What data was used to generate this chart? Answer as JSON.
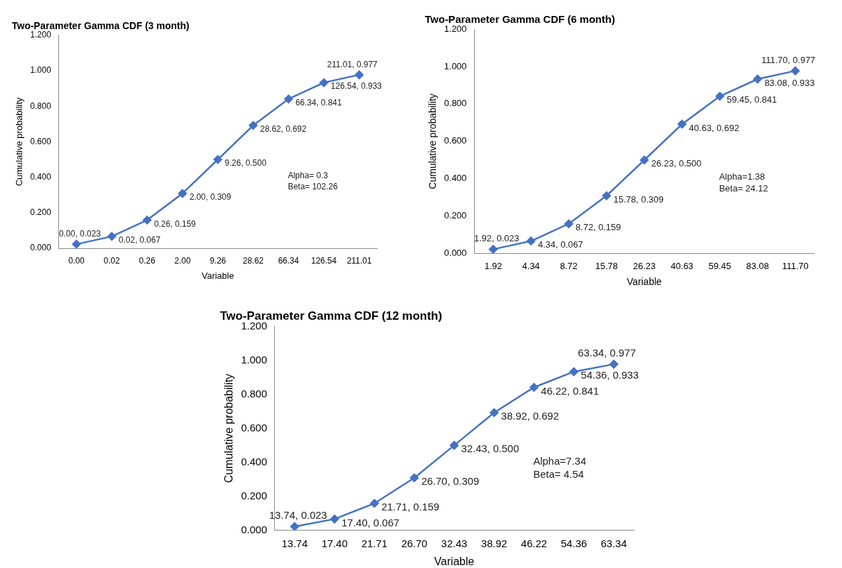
{
  "chart_data": [
    {
      "type": "line",
      "title": "Two-Parameter Gamma CDF (3 month)",
      "xlabel": "Variable",
      "ylabel": "Cumulative probability",
      "categories": [
        "0.00",
        "0.02",
        "0.26",
        "2.00",
        "9.26",
        "28.62",
        "66.34",
        "126.54",
        "211.01"
      ],
      "series": [
        {
          "color": "#4472c4",
          "values": [
            0.023,
            0.067,
            0.159,
            0.309,
            0.5,
            0.692,
            0.841,
            0.933,
            0.977
          ],
          "value_labels": [
            "0.00, 0.023",
            "0.02, 0.067",
            "0.26, 0.159",
            "2.00, 0.309",
            "9.26, 0.500",
            "28.62, 0.692",
            "66.34, 0.841",
            "126.54, 0.933",
            "211.01, 0.977"
          ]
        }
      ],
      "ylim": [
        0,
        1.2
      ],
      "yticks": [
        {
          "value": 0,
          "label": "0.000"
        },
        {
          "value": 0.2,
          "label": "0.200"
        },
        {
          "value": 0.4,
          "label": "0.400"
        },
        {
          "value": 0.6,
          "label": "0.600"
        },
        {
          "value": 0.8,
          "label": "0.800"
        },
        {
          "value": 1,
          "label": "1.000"
        },
        {
          "value": 1.2,
          "label": "1.200"
        }
      ],
      "grid": false,
      "legend": false,
      "marker": "diamond",
      "line_style": "solid",
      "annotations": [
        "Alpha= 0.3",
        "Beta= 102.26"
      ]
    },
    {
      "type": "line",
      "title": "Two-Parameter Gamma CDF (6 month)",
      "xlabel": "Variable",
      "ylabel": "Cumulative probability",
      "categories": [
        "1.92",
        "4.34",
        "8.72",
        "15.78",
        "26.23",
        "40.63",
        "59.45",
        "83.08",
        "111.70"
      ],
      "series": [
        {
          "color": "#4472c4",
          "values": [
            0.023,
            0.067,
            0.159,
            0.309,
            0.5,
            0.692,
            0.841,
            0.933,
            0.977
          ],
          "value_labels": [
            "1.92, 0.023",
            "4.34, 0.067",
            "8.72, 0.159",
            "15.78, 0.309",
            "26.23, 0.500",
            "40.63, 0.692",
            "59.45, 0.841",
            "83.08, 0.933",
            "111.70, 0.977"
          ]
        }
      ],
      "ylim": [
        0,
        1.2
      ],
      "yticks": [
        {
          "value": 0,
          "label": "0.000"
        },
        {
          "value": 0.2,
          "label": "0.200"
        },
        {
          "value": 0.4,
          "label": "0.400"
        },
        {
          "value": 0.6,
          "label": "0.600"
        },
        {
          "value": 0.8,
          "label": "0.800"
        },
        {
          "value": 1,
          "label": "1.000"
        },
        {
          "value": 1.2,
          "label": "1.200"
        }
      ],
      "grid": false,
      "legend": false,
      "marker": "diamond",
      "line_style": "solid",
      "annotations": [
        "Alpha=1.38",
        "Beta= 24.12"
      ]
    },
    {
      "type": "line",
      "title": "Two-Parameter Gamma CDF (12 month)",
      "xlabel": "Variable",
      "ylabel": "Cumulative probability",
      "categories": [
        "13.74",
        "17.40",
        "21.71",
        "26.70",
        "32.43",
        "38.92",
        "46.22",
        "54.36",
        "63.34"
      ],
      "series": [
        {
          "color": "#4472c4",
          "values": [
            0.023,
            0.067,
            0.159,
            0.309,
            0.5,
            0.692,
            0.841,
            0.933,
            0.977
          ],
          "value_labels": [
            "13.74, 0.023",
            "17.40, 0.067",
            "21.71, 0.159",
            "26.70, 0.309",
            "32.43, 0.500",
            "38.92, 0.692",
            "46.22, 0.841",
            "54.36, 0.933",
            "63.34, 0.977"
          ]
        }
      ],
      "ylim": [
        0,
        1.2
      ],
      "yticks": [
        {
          "value": 0,
          "label": "0.000"
        },
        {
          "value": 0.2,
          "label": "0.200"
        },
        {
          "value": 0.4,
          "label": "0.400"
        },
        {
          "value": 0.6,
          "label": "0.600"
        },
        {
          "value": 0.8,
          "label": "0.800"
        },
        {
          "value": 1,
          "label": "1.000"
        },
        {
          "value": 1.2,
          "label": "1.200"
        }
      ],
      "grid": false,
      "legend": false,
      "marker": "diamond",
      "line_style": "solid",
      "annotations": [
        "Alpha=7.34",
        "Beta= 4.54"
      ]
    }
  ]
}
